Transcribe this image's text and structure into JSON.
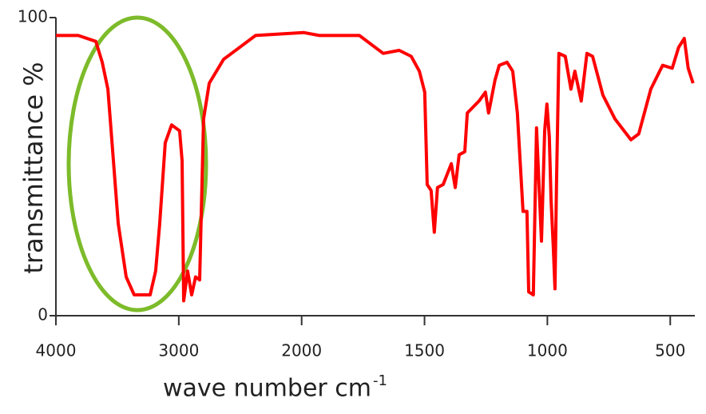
{
  "chart_data": {
    "type": "line",
    "ylabel": "transmittance %",
    "xlabel": "wave number cm",
    "xlabel_superscript": "-1",
    "xlim": [
      4000,
      400
    ],
    "xticks": [
      4000,
      3000,
      2000,
      1500,
      1000,
      500
    ],
    "ylim": [
      0,
      100
    ],
    "yticks": [
      0,
      100
    ],
    "xscale": {
      "type": "two-scale",
      "break": 2000,
      "factor": 2
    },
    "series": [
      {
        "name": null,
        "color": "#ff0000",
        "x": [
          4000,
          3818,
          3675,
          3623,
          3577,
          3545,
          3493,
          3428,
          3363,
          3233,
          3188,
          3155,
          3110,
          3058,
          2993,
          2973,
          2960,
          2928,
          2895,
          2863,
          2830,
          2798,
          2752,
          2635,
          2505,
          2375,
          1992,
          1928,
          1765,
          1668,
          1603,
          1554,
          1521,
          1499,
          1489,
          1473,
          1460,
          1447,
          1424,
          1391,
          1375,
          1359,
          1336,
          1326,
          1278,
          1252,
          1239,
          1213,
          1196,
          1164,
          1141,
          1122,
          1099,
          1083,
          1076,
          1057,
          1044,
          1024,
          1011,
          1002,
          992,
          985,
          976,
          969,
          963,
          953,
          927,
          904,
          888,
          862,
          839,
          816,
          774,
          725,
          660,
          628,
          579,
          531,
          492,
          466,
          443,
          427,
          407
        ],
        "values": [
          94,
          94,
          92,
          85,
          76,
          59,
          31,
          13,
          7,
          7,
          15,
          31,
          58,
          64,
          62,
          52,
          5,
          15,
          7,
          13,
          12,
          66,
          78,
          86,
          90,
          94,
          95,
          94,
          94,
          88,
          89,
          87,
          82,
          75,
          44,
          42,
          28,
          43,
          44,
          51,
          43,
          54,
          55,
          68,
          72,
          75,
          68,
          79,
          84,
          85,
          82,
          68,
          35,
          35,
          8,
          7,
          63,
          25,
          62,
          71,
          60,
          39,
          23,
          9,
          44,
          88,
          87,
          76,
          82,
          72,
          88,
          87,
          74,
          66,
          59,
          61,
          76,
          84,
          83,
          90,
          93,
          83,
          78
        ]
      }
    ]
  }
}
